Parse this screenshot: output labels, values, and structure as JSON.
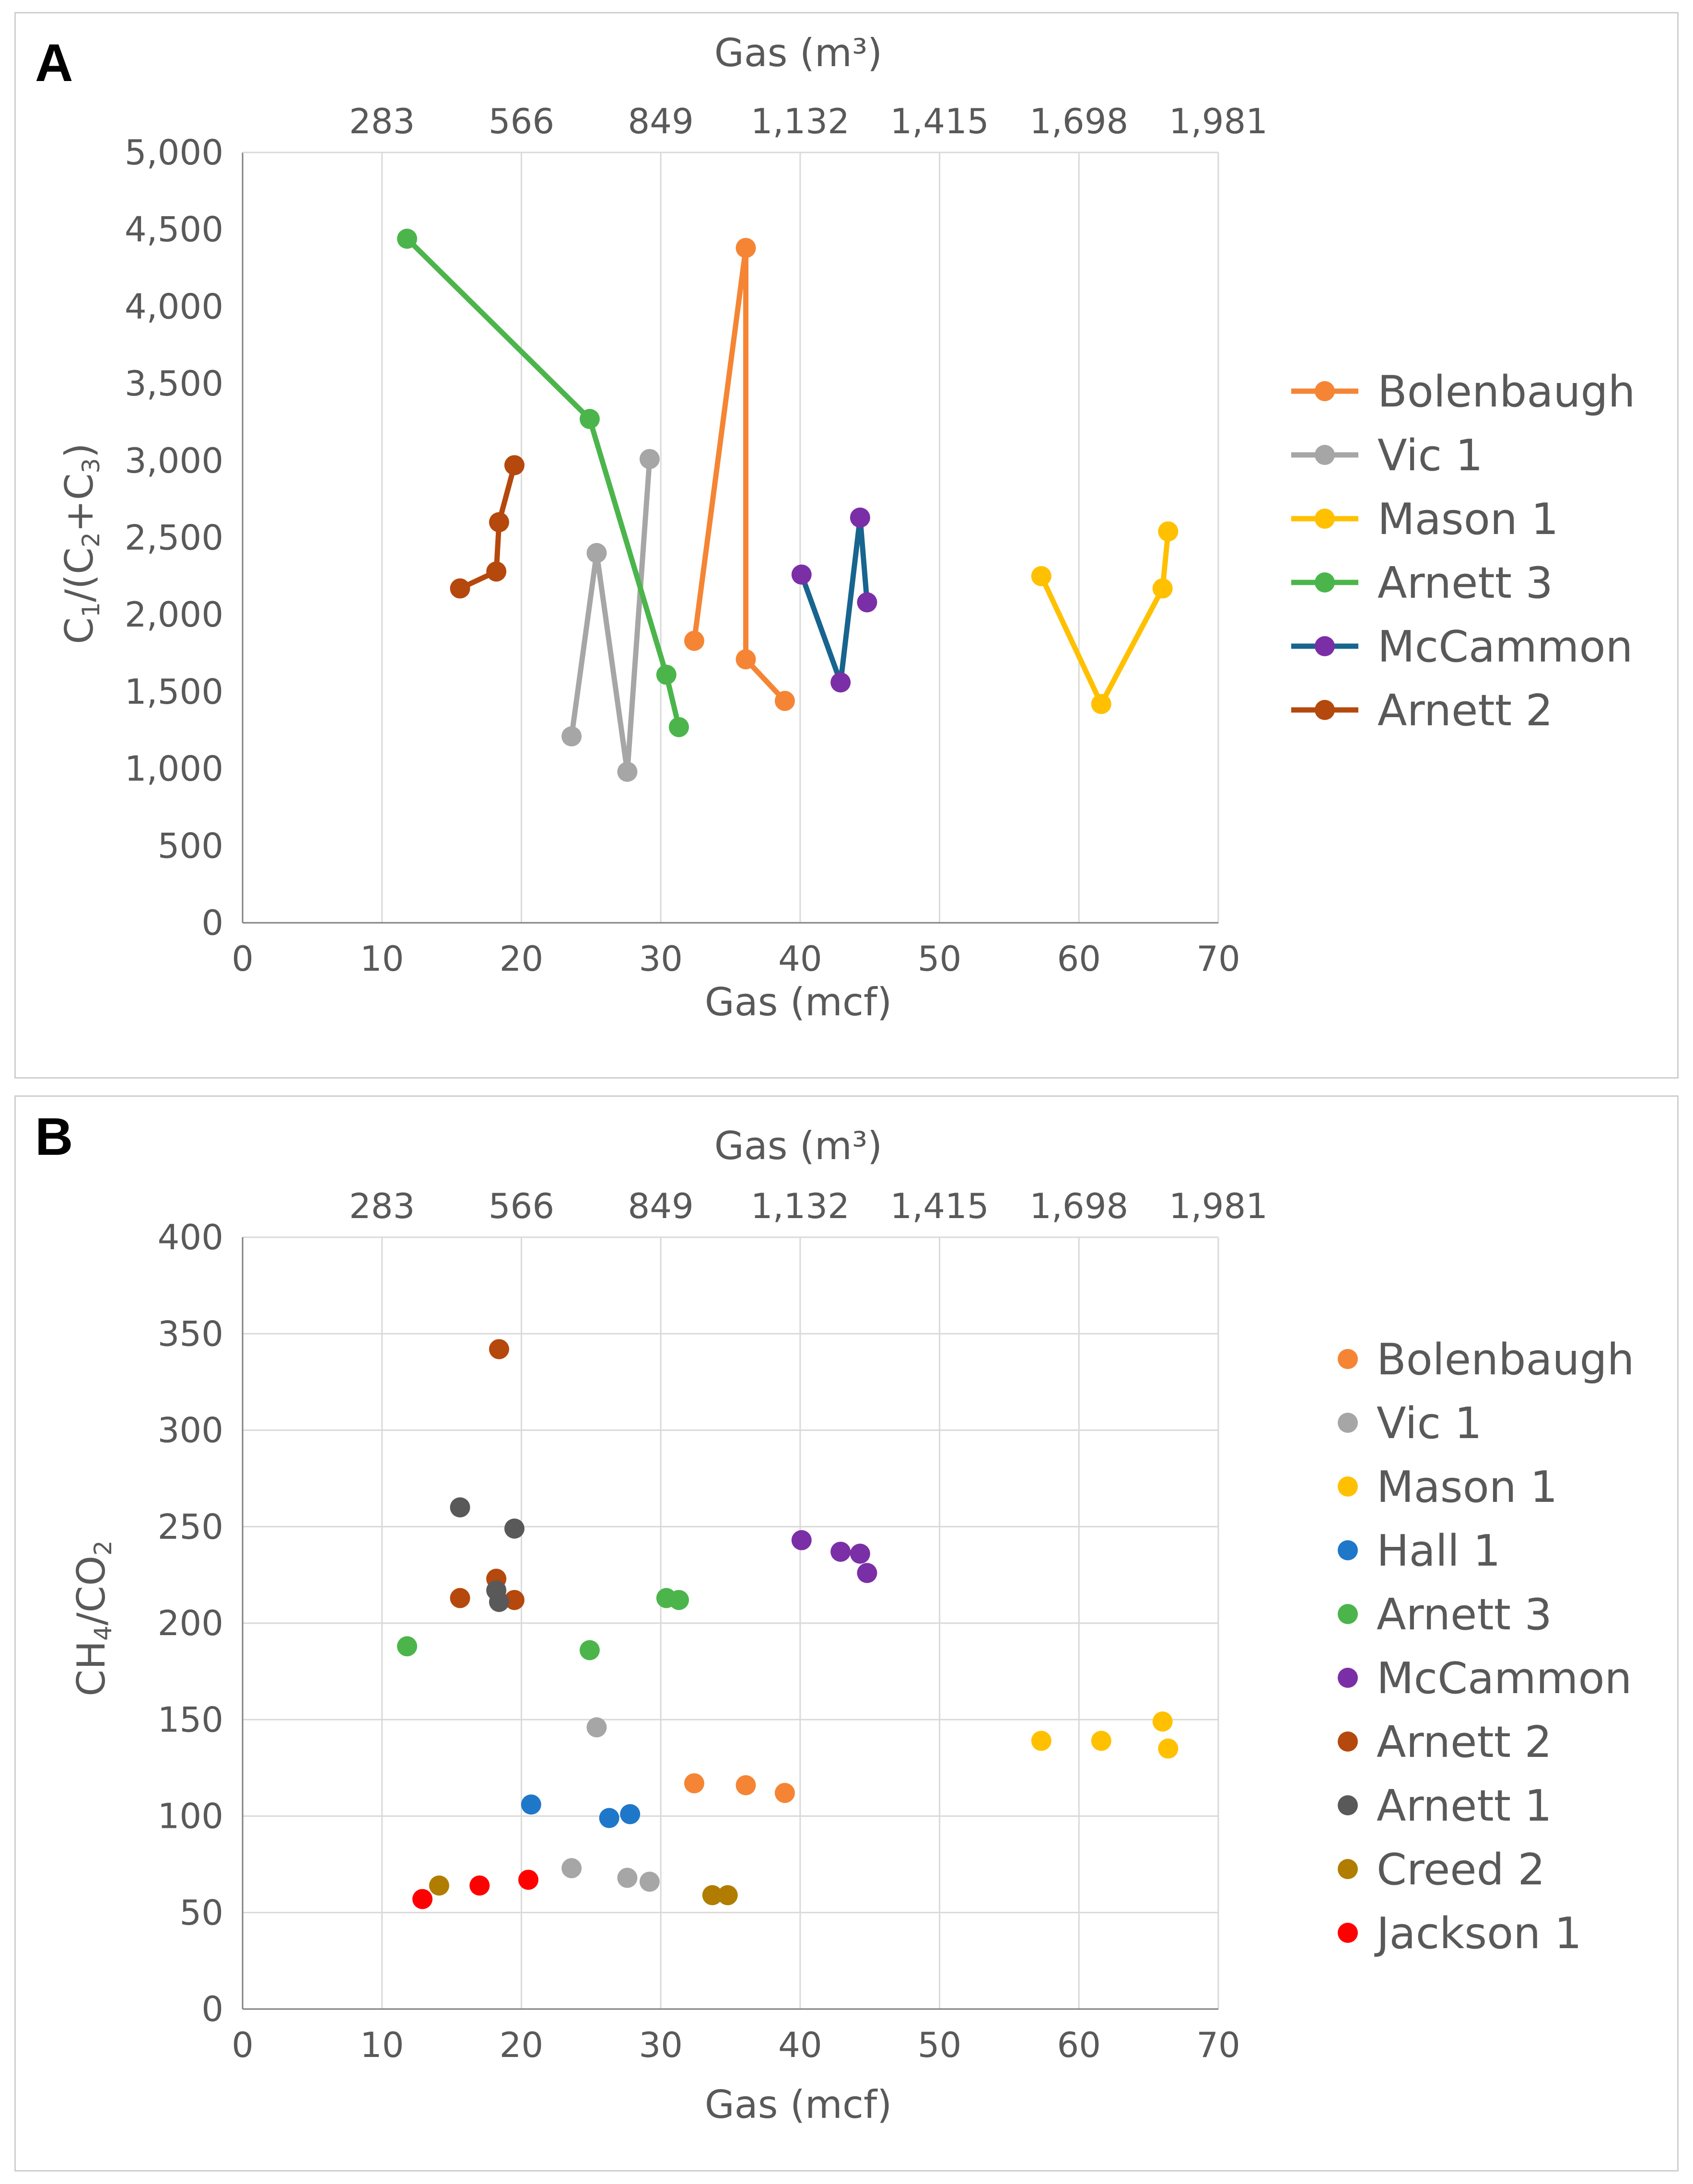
{
  "chart_data": [
    {
      "panel": "A",
      "type": "line",
      "top_axis_title": "Gas (m³)",
      "top_tick_labels": [
        "283",
        "566",
        "849",
        "1,132",
        "1,415",
        "1,698",
        "1,981"
      ],
      "xlabel": "Gas (mcf)",
      "ylabel": {
        "c": "C",
        "s1": "1",
        "mid": "/(C",
        "s2": "2",
        "plus": "+C",
        "s3": "3",
        "end": ")"
      },
      "xlim": [
        0,
        70
      ],
      "ylim": [
        0,
        5000
      ],
      "x_ticks": [
        0,
        10,
        20,
        30,
        40,
        50,
        60,
        70
      ],
      "y_ticks": [
        0,
        500,
        1000,
        1500,
        2000,
        2500,
        3000,
        3500,
        4000,
        4500,
        5000
      ],
      "y_tick_labels": [
        "0",
        "500",
        "1,000",
        "1,500",
        "2,000",
        "2,500",
        "3,000",
        "3,500",
        "4,000",
        "4,500",
        "5,000"
      ],
      "grid": "vertical",
      "legend_position": "right",
      "series": [
        {
          "name": "Bolenbaugh",
          "color": "#f58534",
          "line_color": "#f58534",
          "points": [
            [
              32.4,
              1830
            ],
            [
              36.1,
              4380
            ],
            [
              36.1,
              1710
            ],
            [
              38.9,
              1440
            ]
          ]
        },
        {
          "name": "Vic 1",
          "color": "#a6a6a6",
          "line_color": "#a6a6a6",
          "points": [
            [
              23.6,
              1210
            ],
            [
              25.4,
              2400
            ],
            [
              27.6,
              980
            ],
            [
              29.2,
              3010
            ]
          ]
        },
        {
          "name": "Mason 1",
          "color": "#ffc000",
          "line_color": "#ffc000",
          "points": [
            [
              57.3,
              2250
            ],
            [
              61.6,
              1420
            ],
            [
              66.0,
              2170
            ],
            [
              66.4,
              2540
            ]
          ]
        },
        {
          "name": "Arnett 3",
          "color": "#4bb54b",
          "line_color": "#4bb54b",
          "points": [
            [
              11.8,
              4440
            ],
            [
              24.9,
              3270
            ],
            [
              30.4,
              1610
            ],
            [
              31.3,
              1270
            ]
          ]
        },
        {
          "name": "McCammon",
          "color": "#7b2fa6",
          "line_color": "#17648f",
          "points": [
            [
              40.1,
              2260
            ],
            [
              42.9,
              1560
            ],
            [
              44.3,
              2630
            ],
            [
              44.8,
              2080
            ]
          ]
        },
        {
          "name": "Arnett 2",
          "color": "#b5480d",
          "line_color": "#b5480d",
          "points": [
            [
              15.6,
              2170
            ],
            [
              18.2,
              2280
            ],
            [
              18.4,
              2600
            ],
            [
              19.5,
              2970
            ]
          ]
        }
      ]
    },
    {
      "panel": "B",
      "type": "scatter",
      "top_axis_title": "Gas (m³)",
      "top_tick_labels": [
        "283",
        "566",
        "849",
        "1,132",
        "1,415",
        "1,698",
        "1,981"
      ],
      "xlabel": "Gas (mcf)",
      "ylabel": {
        "a": "CH",
        "s1": "4",
        "b": "/CO",
        "s2": "2"
      },
      "xlim": [
        0,
        70
      ],
      "ylim": [
        0,
        400
      ],
      "x_ticks": [
        0,
        10,
        20,
        30,
        40,
        50,
        60,
        70
      ],
      "y_ticks": [
        0,
        50,
        100,
        150,
        200,
        250,
        300,
        350,
        400
      ],
      "y_tick_labels": [
        "0",
        "50",
        "100",
        "150",
        "200",
        "250",
        "300",
        "350",
        "400"
      ],
      "grid": "both",
      "legend_position": "right",
      "series": [
        {
          "name": "Bolenbaugh",
          "color": "#f58534",
          "points": [
            [
              32.4,
              117
            ],
            [
              36.1,
              116
            ],
            [
              38.9,
              112
            ]
          ]
        },
        {
          "name": "Vic 1",
          "color": "#a6a6a6",
          "points": [
            [
              25.4,
              146
            ],
            [
              23.6,
              73
            ],
            [
              27.6,
              68
            ],
            [
              29.2,
              66
            ]
          ]
        },
        {
          "name": "Mason 1",
          "color": "#ffc000",
          "points": [
            [
              57.3,
              139
            ],
            [
              61.6,
              139
            ],
            [
              66.0,
              149
            ],
            [
              66.4,
              135
            ]
          ]
        },
        {
          "name": "Hall 1",
          "color": "#1f77c9",
          "points": [
            [
              20.7,
              106
            ],
            [
              26.3,
              99
            ],
            [
              27.8,
              101
            ]
          ]
        },
        {
          "name": "Arnett 3",
          "color": "#4bb54b",
          "points": [
            [
              11.8,
              188
            ],
            [
              24.9,
              186
            ],
            [
              30.4,
              213
            ],
            [
              31.3,
              212
            ]
          ]
        },
        {
          "name": "McCammon",
          "color": "#7b2fa6",
          "points": [
            [
              40.1,
              243
            ],
            [
              42.9,
              237
            ],
            [
              44.3,
              236
            ],
            [
              44.8,
              226
            ]
          ]
        },
        {
          "name": "Arnett 2",
          "color": "#b5480d",
          "points": [
            [
              18.4,
              342
            ],
            [
              18.2,
              223
            ],
            [
              15.6,
              213
            ],
            [
              19.5,
              212
            ]
          ]
        },
        {
          "name": "Arnett 1",
          "color": "#595959",
          "points": [
            [
              15.6,
              260
            ],
            [
              19.5,
              249
            ],
            [
              18.2,
              217
            ],
            [
              18.4,
              211
            ]
          ]
        },
        {
          "name": "Creed 2",
          "color": "#b07d00",
          "points": [
            [
              14.1,
              64
            ],
            [
              33.7,
              59
            ],
            [
              34.8,
              59
            ]
          ]
        },
        {
          "name": "Jackson 1",
          "color": "#ff0000",
          "points": [
            [
              12.9,
              57
            ],
            [
              17.0,
              64
            ],
            [
              20.5,
              67
            ]
          ]
        }
      ]
    }
  ]
}
